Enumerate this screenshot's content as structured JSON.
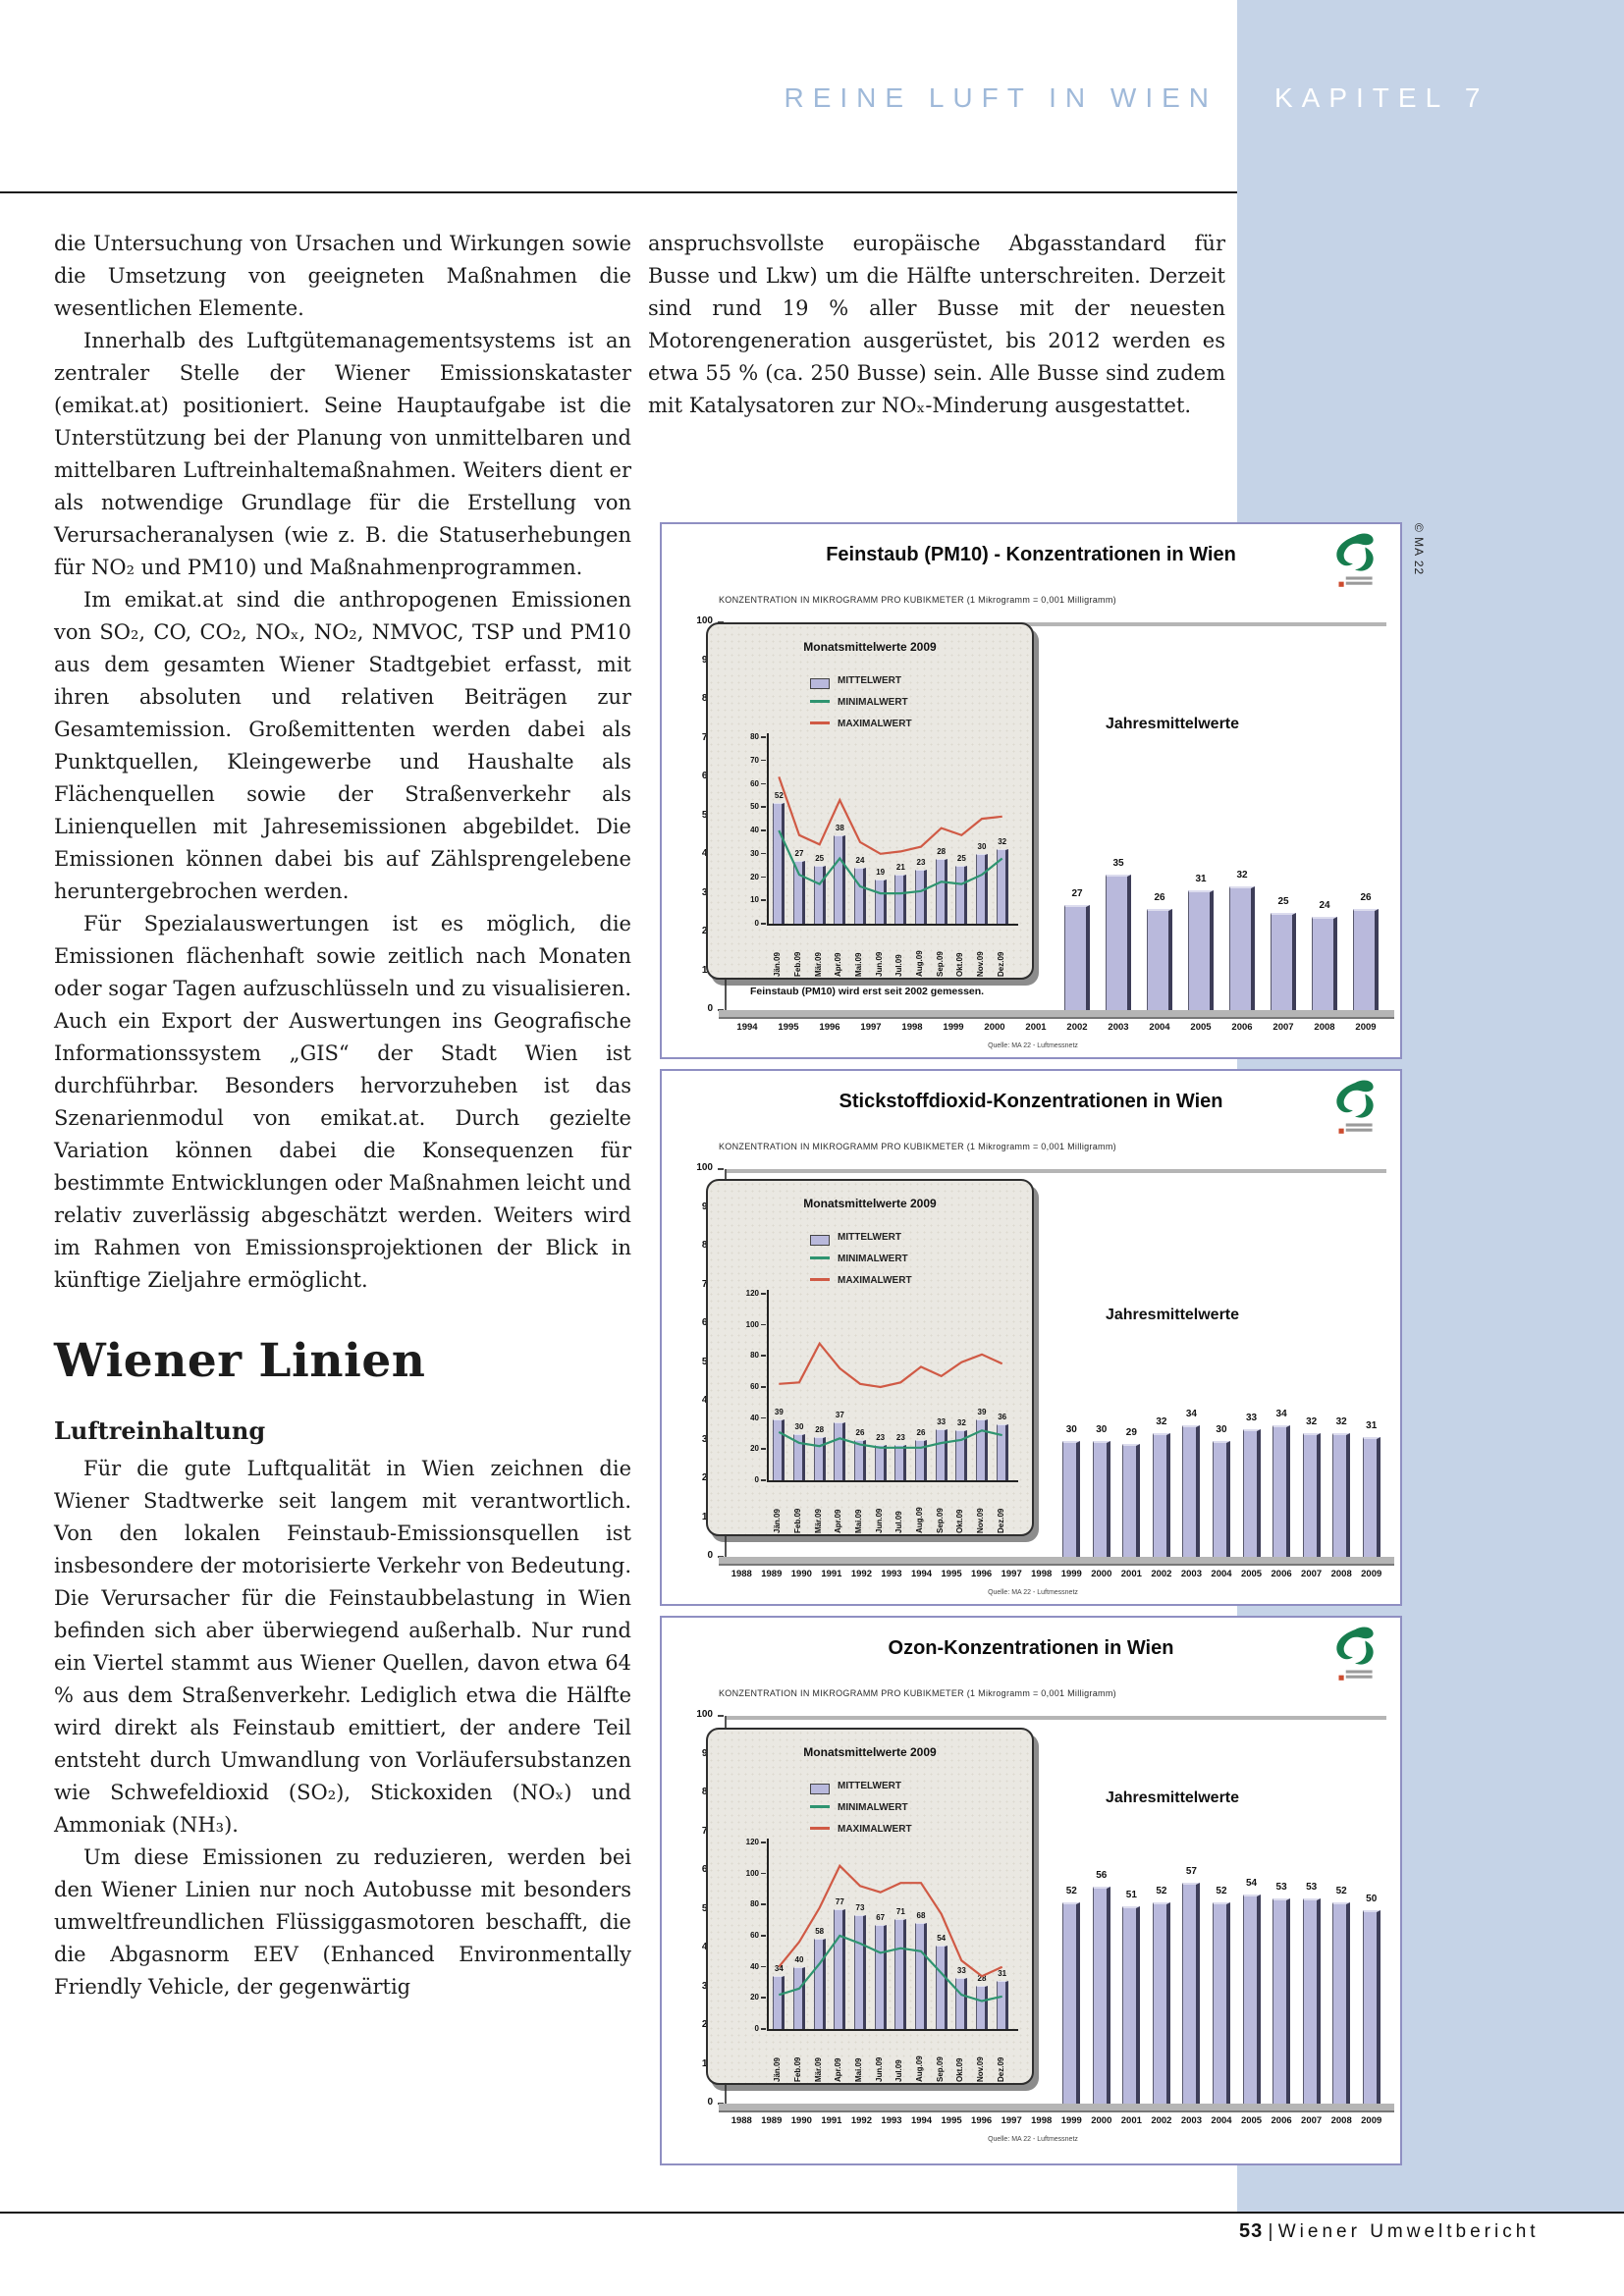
{
  "header": {
    "running_title": "REINE LUFT IN WIEN",
    "chapter": "KAPITEL 7"
  },
  "credit": "© MA 22",
  "footer": {
    "page_number": "53",
    "divider": "|",
    "title": "Wiener Umweltbericht"
  },
  "left_column": {
    "para1": "die Untersuchung von Ursachen und Wirkungen sowie die Umsetzung von geeigneten Maßnahmen die wesentlichen Elemente.",
    "para2": "Innerhalb des Luftgütemanagementsystems ist an zentraler Stelle der Wiener Emissionskataster (emikat.at) positioniert. Seine Hauptaufgabe ist die Unterstützung bei der Planung von unmittelbaren und mittelbaren Luftreinhaltemaßnahmen. Weiters dient er als notwendige Grundlage für die Erstellung von Verursacheranalysen (wie z. B. die Statuserhebungen für NO₂ und PM10) und Maßnahmenprogrammen.",
    "para3": "Im emikat.at sind die anthropogenen Emissionen von SO₂, CO, CO₂, NOₓ, NO₂, NMVOC, TSP und PM10 aus dem gesamten Wiener Stadtgebiet erfasst, mit ihren absoluten und relativen Beiträgen zur Gesamtemission. Großemittenten werden dabei als Punktquellen, Kleingewerbe und Haushalte als Flächenquellen sowie der Straßenverkehr als Linienquellen mit Jahresemissionen abgebildet. Die Emissionen können dabei bis auf Zählsprengelebene heruntergebrochen werden.",
    "para4": "Für Spezialauswertungen ist es möglich, die Emissionen flächenhaft sowie zeitlich nach Monaten oder sogar Tagen aufzuschlüsseln und zu visualisieren. Auch ein Export der Auswertungen ins Geografische Informationssystem „GIS“ der Stadt Wien ist durchführbar. Besonders hervorzuheben ist das Szenarienmodul von emikat.at. Durch gezielte Variation können dabei die Konsequenzen für bestimmte Entwicklungen oder Maßnahmen leicht und relativ zuverlässig abgeschätzt werden. Weiters wird im Rahmen von Emissionsprojektionen der Blick in künftige Zieljahre ermöglicht.",
    "heading": "Wiener Linien",
    "subheading": "Luftreinhaltung",
    "para5": "Für die gute Luftqualität in Wien zeichnen die Wiener Stadtwerke seit langem mit verantwortlich. Von den lokalen Feinstaub-Emissionsquellen ist insbesondere der motorisierte Verkehr von Bedeutung. Die Verursacher für die Feinstaubbelastung in Wien befinden sich aber überwiegend außerhalb. Nur rund ein Viertel stammt aus Wiener Quellen, davon etwa 64 % aus dem Straßenverkehr. Lediglich etwa die Hälfte wird direkt als Feinstaub emittiert, der andere Teil entsteht durch Umwandlung von Vorläufersubstanzen wie Schwefeldioxid (SO₂), Stickoxiden (NOₓ) und Ammoniak (NH₃).",
    "para6": "Um diese Emissionen zu reduzieren, werden bei den Wiener Linien nur noch Autobusse mit besonders umweltfreundlichen Flüssiggasmotoren beschafft, die die Abgasnorm EEV (Enhanced Environmentally Friendly Vehicle, der gegenwärtig"
  },
  "right_column": {
    "para1": "anspruchsvollste europäische Abgasstandard für Busse und Lkw) um die Hälfte unterschreiten. Derzeit sind rund 19 % aller Busse mit der neuesten Motorengeneration ausgerüstet, bis 2012 werden es etwa 55 % (ca. 250 Busse) sein. Alle Busse sind zudem mit Katalysatoren zur NOₓ-Minderung ausgestattet.",
    "para2": "gestattet."
  },
  "colors": {
    "sidebar": "#c5d3e7",
    "header_text": "#9fb9d9",
    "bar_fill": "#b9b9dc",
    "bar_edge": "#3d3d58",
    "min_line": "#2e9470",
    "max_line": "#d05a45",
    "chart_border": "#8f8fc2"
  },
  "chart_data": [
    {
      "type": "bar",
      "title": "Feinstaub (PM10) - Konzentrationen in Wien",
      "subtitle": "KONZENTRATION IN MIKROGRAMM PRO KUBIKMETER (1 Mikrogramm = 0,001 Milligramm)",
      "annotation": "Jahresmittelwerte",
      "note": "Feinstaub (PM10) wird erst seit 2002 gemessen.",
      "source": "Quelle: MA 22 - Luftmessnetz",
      "ylim": [
        0,
        100
      ],
      "ytick_step": 10,
      "grid": "off",
      "legend_position": "inset-top-left",
      "categories": [
        "1994",
        "1995",
        "1996",
        "1997",
        "1998",
        "1999",
        "2000",
        "2001",
        "2002",
        "2003",
        "2004",
        "2005",
        "2006",
        "2007",
        "2008",
        "2009"
      ],
      "values": [
        null,
        null,
        null,
        null,
        null,
        null,
        null,
        null,
        27,
        35,
        26,
        31,
        32,
        25,
        24,
        26
      ],
      "inset": {
        "title": "Monatsmittelwerte 2009",
        "legend": [
          "MITTELWERT",
          "MINIMALWERT",
          "MAXIMALWERT"
        ],
        "ylim": [
          0,
          80
        ],
        "ytick_step": 10,
        "months": [
          "Jän.09",
          "Feb.09",
          "Mär.09",
          "Apr.09",
          "Mai.09",
          "Jun.09",
          "Jul.09",
          "Aug.09",
          "Sep.09",
          "Okt.09",
          "Nov.09",
          "Dez.09"
        ],
        "mittelwert": [
          52,
          27,
          25,
          38,
          24,
          19,
          21,
          23,
          28,
          25,
          30,
          32
        ],
        "minimalwert": [
          40,
          21,
          17,
          28,
          16,
          13,
          13,
          14,
          18,
          17,
          21,
          28
        ],
        "maximalwert": [
          63,
          38,
          34,
          53,
          35,
          30,
          31,
          33,
          41,
          38,
          45,
          46
        ]
      }
    },
    {
      "type": "bar",
      "title": "Stickstoffdioxid-Konzentrationen in Wien",
      "subtitle": "KONZENTRATION IN MIKROGRAMM PRO KUBIKMETER (1 Mikrogramm = 0,001 Milligramm)",
      "annotation": "Jahresmittelwerte",
      "source": "Quelle: MA 22 - Luftmessnetz",
      "ylim": [
        0,
        100
      ],
      "ytick_step": 10,
      "grid": "off",
      "legend_position": "inset-top-left",
      "categories": [
        "1988",
        "1989",
        "1990",
        "1991",
        "1992",
        "1993",
        "1994",
        "1995",
        "1996",
        "1997",
        "1998",
        "1999",
        "2000",
        "2001",
        "2002",
        "2003",
        "2004",
        "2005",
        "2006",
        "2007",
        "2008",
        "2009"
      ],
      "values": [
        null,
        null,
        null,
        null,
        null,
        null,
        null,
        null,
        null,
        null,
        null,
        30,
        30,
        29,
        32,
        34,
        30,
        33,
        34,
        32,
        32,
        31
      ],
      "inset": {
        "title": "Monatsmittelwerte 2009",
        "legend": [
          "MITTELWERT",
          "MINIMALWERT",
          "MAXIMALWERT"
        ],
        "ylim": [
          0,
          120
        ],
        "ytick_step": 20,
        "months": [
          "Jän.09",
          "Feb.09",
          "Mär.09",
          "Apr.09",
          "Mai.09",
          "Jun.09",
          "Jul.09",
          "Aug.09",
          "Sep.09",
          "Okt.09",
          "Nov.09",
          "Dez.09"
        ],
        "mittelwert": [
          39,
          30,
          28,
          37,
          26,
          23,
          23,
          26,
          33,
          32,
          39,
          36
        ],
        "minimalwert": [
          31,
          24,
          22,
          27,
          23,
          21,
          21,
          21,
          24,
          26,
          32,
          29
        ],
        "maximalwert": [
          62,
          63,
          88,
          72,
          62,
          60,
          63,
          73,
          67,
          76,
          81,
          75
        ]
      }
    },
    {
      "type": "bar",
      "title": "Ozon-Konzentrationen in Wien",
      "subtitle": "KONZENTRATION IN MIKROGRAMM PRO KUBIKMETER (1 Mikrogramm = 0,001 Milligramm)",
      "annotation": "Jahresmittelwerte",
      "source": "Quelle: MA 22 - Luftmessnetz",
      "ylim": [
        0,
        100
      ],
      "ytick_step": 10,
      "grid": "off",
      "legend_position": "inset-top-left",
      "categories": [
        "1988",
        "1989",
        "1990",
        "1991",
        "1992",
        "1993",
        "1994",
        "1995",
        "1996",
        "1997",
        "1998",
        "1999",
        "2000",
        "2001",
        "2002",
        "2003",
        "2004",
        "2005",
        "2006",
        "2007",
        "2008",
        "2009"
      ],
      "values": [
        null,
        null,
        null,
        null,
        null,
        null,
        null,
        null,
        null,
        null,
        null,
        52,
        56,
        51,
        52,
        57,
        52,
        54,
        53,
        53,
        52,
        50
      ],
      "inset": {
        "title": "Monatsmittelwerte 2009",
        "legend": [
          "MITTELWERT",
          "MINIMALWERT",
          "MAXIMALWERT"
        ],
        "ylim": [
          0,
          120
        ],
        "ytick_step": 20,
        "months": [
          "Jän.09",
          "Feb.09",
          "Mär.09",
          "Apr.09",
          "Mai.09",
          "Jun.09",
          "Jul.09",
          "Aug.09",
          "Sep.09",
          "Okt.09",
          "Nov.09",
          "Dez.09"
        ],
        "mittelwert": [
          34,
          40,
          58,
          77,
          73,
          67,
          71,
          68,
          54,
          33,
          28,
          31
        ],
        "minimalwert": [
          22,
          26,
          42,
          60,
          55,
          49,
          52,
          50,
          36,
          22,
          18,
          21
        ],
        "maximalwert": [
          40,
          56,
          78,
          105,
          92,
          88,
          94,
          94,
          74,
          44,
          34,
          40
        ]
      }
    }
  ]
}
